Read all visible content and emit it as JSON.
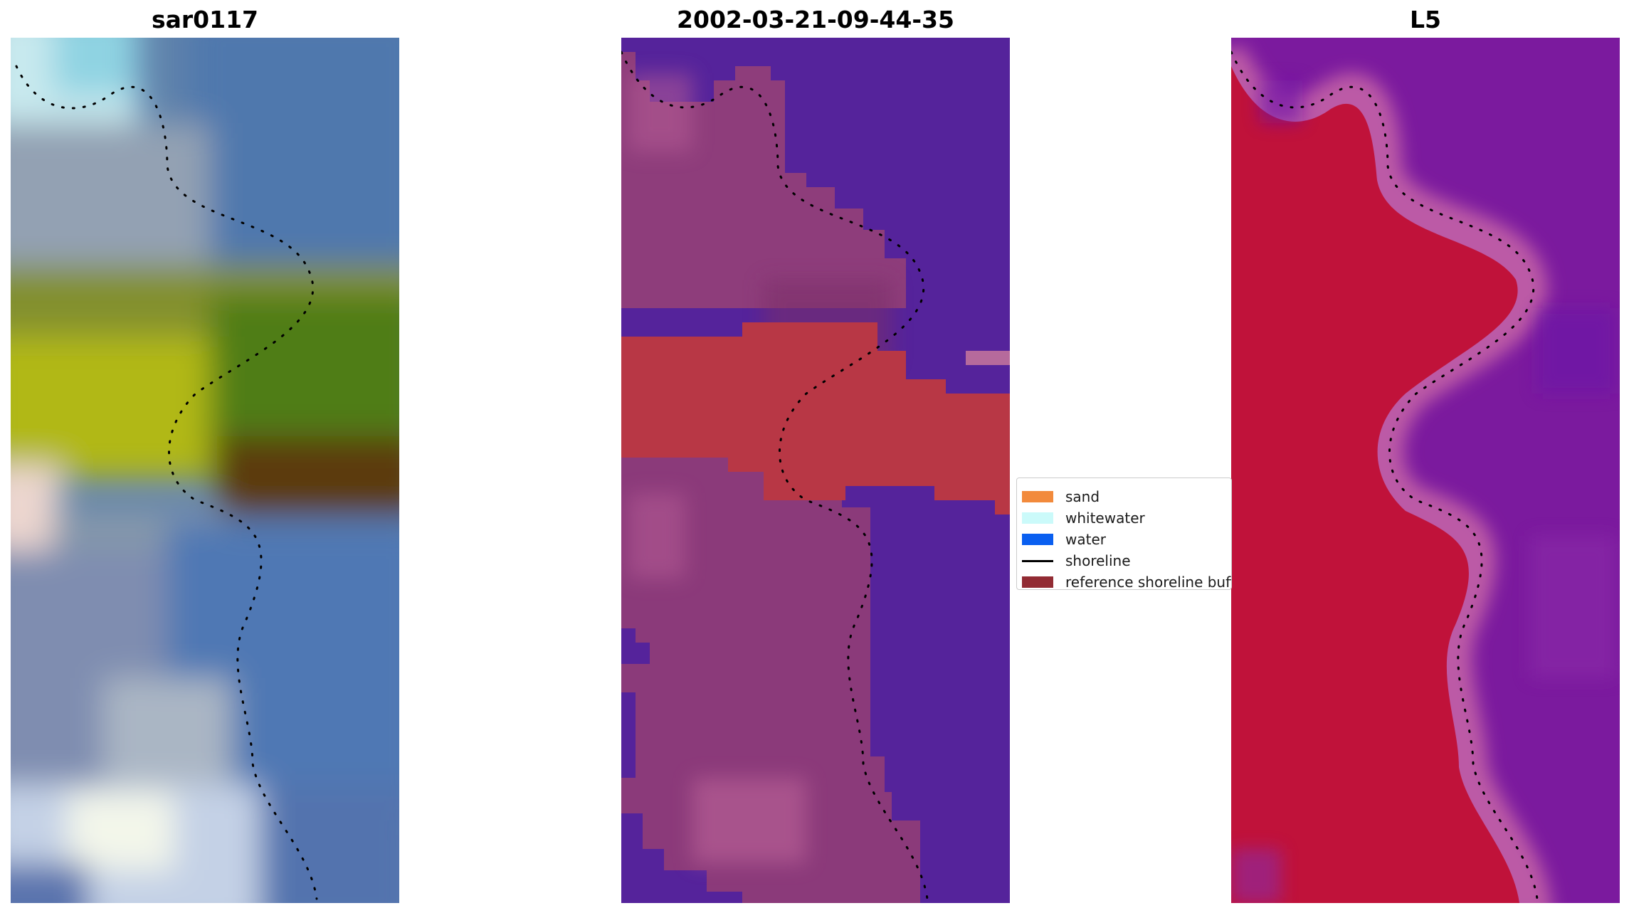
{
  "panels": [
    {
      "title": "sar0117"
    },
    {
      "title": "2002-03-21-09-44-35"
    },
    {
      "title": "L5"
    }
  ],
  "legend": {
    "items": [
      {
        "label": "sand",
        "color": "#f28a3c",
        "kind": "patch"
      },
      {
        "label": "whitewater",
        "color": "#cbfafa",
        "kind": "patch"
      },
      {
        "label": "water",
        "color": "#0a5ff0",
        "kind": "patch"
      },
      {
        "label": "shoreline",
        "color": "#000000",
        "kind": "line"
      },
      {
        "label": "reference shoreline buffer",
        "color": "#922b33",
        "kind": "patch"
      }
    ]
  },
  "colors": {
    "buffer_red": "#b83745",
    "classified_water": "#55239b",
    "index_high": "#c0123a",
    "index_low": "#7b1a9e",
    "shoreline": "#000000"
  }
}
